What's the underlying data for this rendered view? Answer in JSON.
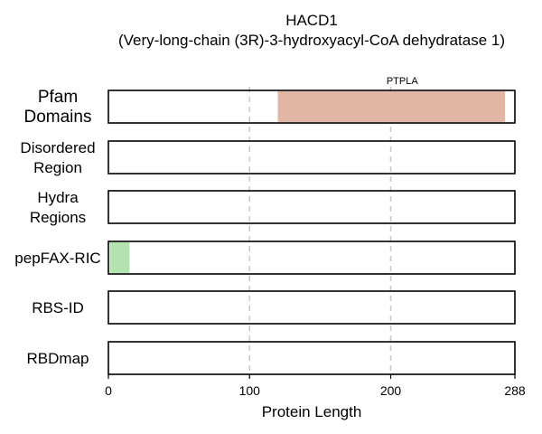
{
  "chart_data": {
    "type": "bar",
    "title": "HACD1",
    "subtitle": "(Very-long-chain (3R)-3-hydroxyacyl-CoA dehydratase 1)",
    "xlabel": "Protein Length",
    "xlim": [
      0,
      288
    ],
    "xticks": [
      0,
      100,
      200,
      288
    ],
    "grid_x": [
      100,
      200
    ],
    "rows": [
      {
        "label": "Pfam Domains",
        "label_lines": [
          "Pfam",
          "Domains"
        ],
        "segments": [
          {
            "start": 120,
            "end": 281,
            "label": "PTPLA",
            "color": "#e2b6a4"
          }
        ]
      },
      {
        "label": "Disordered Region",
        "label_lines": [
          "Disordered",
          "Region"
        ],
        "segments": []
      },
      {
        "label": "Hydra Regions",
        "label_lines": [
          "Hydra",
          "Regions"
        ],
        "segments": []
      },
      {
        "label": "pepFAX-RIC",
        "label_lines": [
          "pepFAX-RIC"
        ],
        "segments": [
          {
            "start": 1,
            "end": 15,
            "label": "",
            "color": "#b4e2b0"
          }
        ]
      },
      {
        "label": "RBS-ID",
        "label_lines": [
          "RBS-ID"
        ],
        "segments": []
      },
      {
        "label": "RBDmap",
        "label_lines": [
          "RBDmap"
        ],
        "segments": []
      }
    ]
  }
}
